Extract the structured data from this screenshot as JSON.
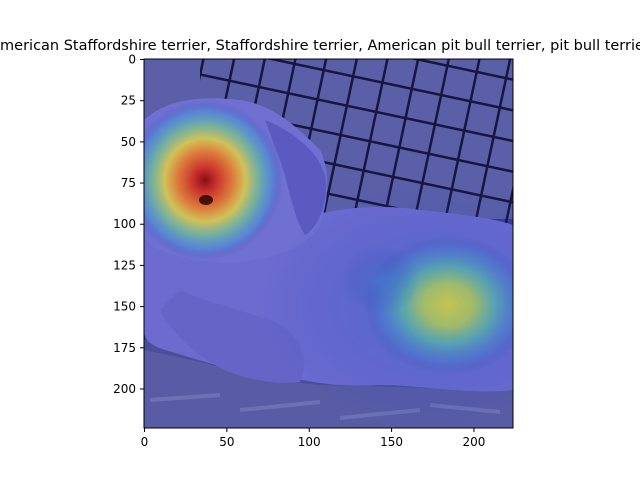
{
  "figure": {
    "title": "American Staffordshire terrier, Staffordshire terrier, American pit bull terrier, pit bull terrier"
  },
  "axes": {
    "x_ticks": [
      "0",
      "50",
      "100",
      "150",
      "200"
    ],
    "y_ticks": [
      "0",
      "25",
      "50",
      "75",
      "100",
      "125",
      "150",
      "175",
      "200"
    ],
    "x_range": [
      0,
      224
    ],
    "y_range": [
      0,
      224
    ]
  },
  "image": {
    "subject": "dog lying on blanket in front of wire crate",
    "overlay": "class activation heatmap (jet colormap)",
    "heat_peaks": [
      {
        "label": "head",
        "x": 38,
        "y": 80,
        "intensity": 1.0
      },
      {
        "label": "hip",
        "x": 185,
        "y": 148,
        "intensity": 0.6
      }
    ]
  }
}
